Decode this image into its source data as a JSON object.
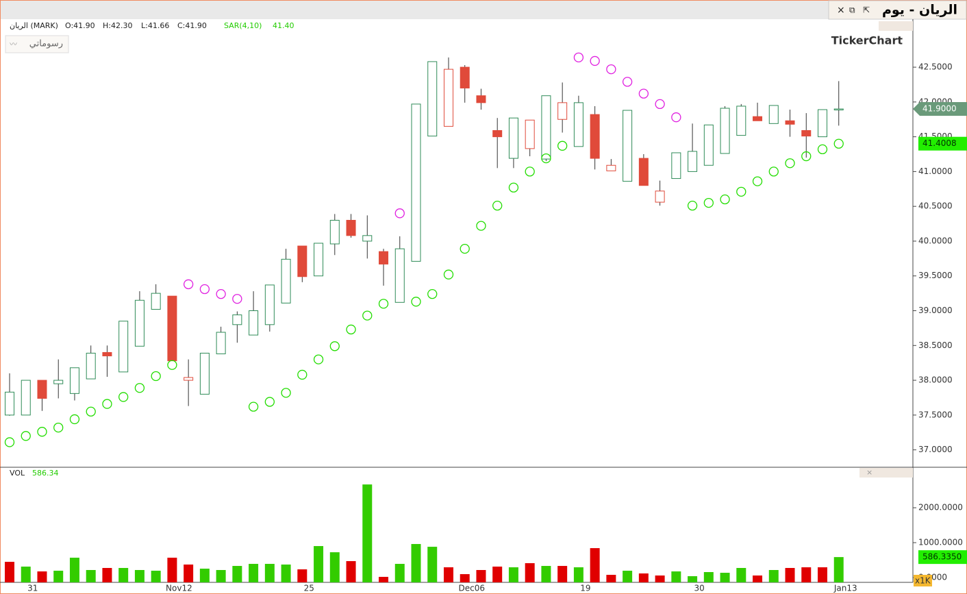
{
  "window": {
    "title": "الريان - يوم"
  },
  "chart_data": [
    {
      "type": "candlestick",
      "symbol": "الريان (MARK)",
      "ohlc_labels": [
        "O:41.90",
        "H:42.30",
        "L:41.66",
        "C:41.90"
      ],
      "indicator": "SAR(4,10)",
      "indicator_value": "41.40",
      "drawings_button": "رسوماتي",
      "logo": "TickerChart",
      "categories": [
        null,
        "31",
        null,
        null,
        null,
        null,
        null,
        null,
        null,
        null,
        "Nov12",
        null,
        null,
        null,
        null,
        null,
        null,
        null,
        "25",
        null,
        null,
        null,
        null,
        null,
        null,
        null,
        null,
        null,
        "Dec06",
        null,
        null,
        null,
        null,
        null,
        null,
        "19",
        null,
        null,
        null,
        null,
        null,
        null,
        "30",
        null,
        null,
        null,
        null,
        null,
        null,
        null,
        null,
        "Jan13"
      ],
      "open": [
        37.5,
        37.5,
        38.0,
        37.95,
        37.81,
        38.02,
        38.4,
        38.12,
        38.49,
        39.02,
        39.21,
        38.0,
        37.8,
        38.38,
        38.8,
        38.65,
        38.8,
        39.11,
        39.93,
        39.5,
        39.96,
        40.3,
        40.0,
        39.85,
        39.12,
        39.71,
        41.51,
        41.65,
        42.5,
        42.09,
        41.59,
        41.19,
        41.33,
        41.18,
        41.75,
        41.36,
        41.82,
        41.01,
        40.86,
        41.19,
        40.56,
        40.9,
        41.0,
        41.09,
        41.26,
        41.52,
        41.79,
        41.69,
        41.73,
        41.59,
        41.5,
        41.9
      ],
      "high": [
        38.1,
        38.0,
        38.0,
        38.3,
        38.18,
        38.5,
        38.5,
        38.85,
        39.28,
        39.38,
        39.21,
        38.3,
        38.39,
        38.77,
        38.99,
        39.28,
        39.37,
        39.89,
        39.93,
        39.97,
        40.39,
        40.39,
        40.37,
        39.89,
        40.07,
        41.97,
        42.58,
        42.64,
        42.53,
        42.19,
        41.77,
        41.77,
        41.74,
        42.09,
        42.28,
        42.09,
        41.94,
        41.18,
        41.88,
        41.25,
        40.87,
        41.27,
        41.69,
        41.67,
        41.94,
        41.97,
        41.99,
        41.95,
        41.89,
        41.84,
        41.89,
        42.3
      ],
      "low": [
        37.49,
        37.5,
        37.56,
        37.74,
        37.71,
        38.02,
        38.05,
        38.12,
        38.49,
        39.02,
        38.28,
        37.63,
        37.8,
        38.38,
        38.54,
        38.65,
        38.7,
        39.11,
        39.41,
        39.5,
        39.8,
        40.05,
        39.75,
        39.36,
        39.12,
        39.71,
        41.51,
        41.65,
        41.99,
        41.89,
        41.05,
        41.05,
        41.22,
        41.15,
        41.56,
        41.36,
        41.03,
        41.01,
        40.86,
        40.8,
        40.51,
        40.9,
        41.0,
        41.09,
        41.26,
        41.52,
        41.73,
        41.69,
        41.5,
        41.2,
        41.5,
        41.66
      ],
      "close": [
        37.83,
        38.0,
        37.74,
        38.0,
        38.18,
        38.39,
        38.35,
        38.85,
        39.15,
        39.25,
        38.28,
        38.04,
        38.39,
        38.69,
        38.94,
        39.0,
        39.37,
        39.74,
        39.49,
        39.97,
        40.3,
        40.08,
        40.08,
        39.67,
        39.89,
        41.97,
        42.58,
        42.47,
        42.2,
        41.99,
        41.5,
        41.77,
        41.74,
        42.09,
        41.99,
        41.99,
        41.19,
        41.09,
        41.88,
        40.8,
        40.72,
        41.27,
        41.29,
        41.67,
        41.91,
        41.94,
        41.73,
        41.95,
        41.68,
        41.51,
        41.89,
        41.9
      ],
      "sar": [
        37.11,
        37.2,
        37.26,
        37.32,
        37.44,
        37.55,
        37.66,
        37.76,
        37.89,
        38.06,
        38.22,
        39.38,
        39.31,
        39.24,
        39.17,
        37.62,
        37.69,
        37.82,
        38.08,
        38.3,
        38.49,
        38.73,
        38.93,
        39.1,
        40.4,
        39.13,
        39.24,
        39.52,
        39.89,
        40.22,
        40.51,
        40.77,
        41.0,
        41.19,
        41.37,
        42.64,
        42.59,
        42.47,
        42.29,
        42.12,
        41.97,
        41.78,
        40.51,
        40.55,
        40.6,
        40.71,
        40.86,
        41.0,
        41.12,
        41.22,
        41.32,
        41.4
      ],
      "up_color": "#2e8b57",
      "down_color": "#e04a3a",
      "sar_above_color": "#e020e0",
      "sar_below_color": "#22dd00",
      "ylim": [
        36.75,
        43.19
      ],
      "yticks": [
        {
          "value": 37.0,
          "label": "37.0000"
        },
        {
          "value": 37.5,
          "label": "37.5000"
        },
        {
          "value": 38.0,
          "label": "38.0000"
        },
        {
          "value": 38.5,
          "label": "38.5000"
        },
        {
          "value": 39.0,
          "label": "39.0000"
        },
        {
          "value": 39.5,
          "label": "39.5000"
        },
        {
          "value": 40.0,
          "label": "40.0000"
        },
        {
          "value": 40.5,
          "label": "40.5000"
        },
        {
          "value": 41.0,
          "label": "41.0000"
        },
        {
          "value": 41.5,
          "label": "41.5000"
        },
        {
          "value": 42.0,
          "label": "42.0000"
        },
        {
          "value": 42.5,
          "label": "42.5000"
        }
      ],
      "last_price": {
        "value": 41.9,
        "label": "41.9000"
      },
      "last_sar": {
        "value": 41.4008,
        "label": "41.4008"
      }
    },
    {
      "type": "bar",
      "title": "VOL",
      "title_value": "586.34",
      "multiplier_label": "x1K",
      "values": [
        451,
        314,
        176,
        196,
        569,
        216,
        275,
        275,
        216,
        196,
        569,
        373,
        255,
        216,
        333,
        392,
        392,
        373,
        235,
        902,
        725,
        471,
        2667,
        20,
        392,
        961,
        882,
        294,
        98,
        216,
        314,
        294,
        412,
        333,
        333,
        294,
        843,
        78,
        196,
        118,
        59,
        176,
        39,
        157,
        137,
        275,
        59,
        216,
        275,
        294,
        294,
        586.335
      ],
      "colors": [
        "#e00000",
        "#33cc00",
        "#e00000",
        "#33cc00",
        "#33cc00",
        "#33cc00",
        "#e00000",
        "#33cc00",
        "#33cc00",
        "#33cc00",
        "#e00000",
        "#e00000",
        "#33cc00",
        "#33cc00",
        "#33cc00",
        "#33cc00",
        "#33cc00",
        "#33cc00",
        "#e00000",
        "#33cc00",
        "#33cc00",
        "#e00000",
        "#33cc00",
        "#e00000",
        "#33cc00",
        "#33cc00",
        "#33cc00",
        "#e00000",
        "#e00000",
        "#e00000",
        "#e00000",
        "#33cc00",
        "#e00000",
        "#33cc00",
        "#e00000",
        "#33cc00",
        "#e00000",
        "#e00000",
        "#33cc00",
        "#e00000",
        "#e00000",
        "#33cc00",
        "#33cc00",
        "#33cc00",
        "#33cc00",
        "#33cc00",
        "#e00000",
        "#33cc00",
        "#e00000",
        "#e00000",
        "#e00000",
        "#33cc00"
      ],
      "ylim": [
        0,
        3160
      ],
      "yticks": [
        {
          "value": 0,
          "label": "0.0000"
        },
        {
          "value": 1000,
          "label": "1000.0000"
        },
        {
          "value": 2000,
          "label": "2000.0000"
        }
      ],
      "last_value": {
        "value": 586.335,
        "label": "586.3350"
      }
    }
  ]
}
